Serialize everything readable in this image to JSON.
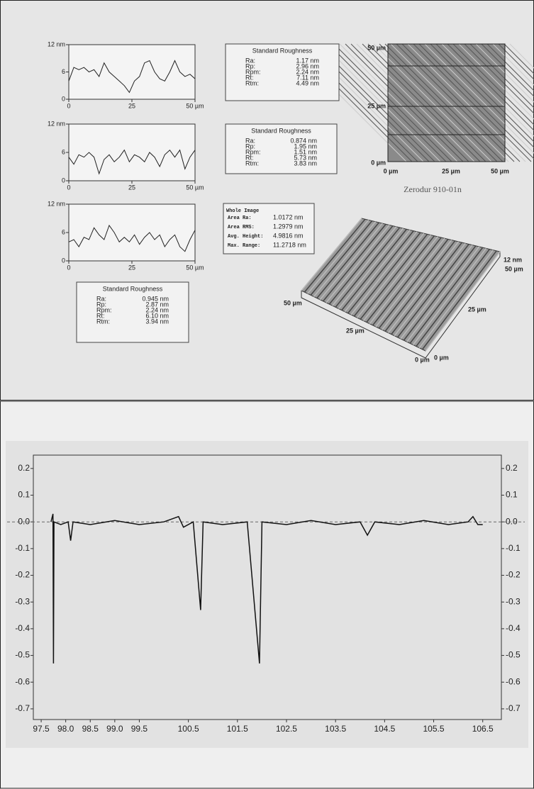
{
  "chart_data": [
    {
      "type": "line",
      "xlim": [
        0,
        50
      ],
      "ylim": [
        0,
        12
      ],
      "xticks": [
        0,
        25,
        {
          "value": 50,
          "label": "50 µm"
        }
      ],
      "yticks": [
        {
          "value": 12,
          "label": "12 nm"
        },
        6,
        0
      ],
      "color": "#222",
      "x": [
        0,
        2,
        4,
        6,
        8,
        10,
        12,
        14,
        16,
        18,
        20,
        22,
        24,
        26,
        28,
        30,
        32,
        34,
        36,
        38,
        40,
        42,
        44,
        46,
        48,
        50
      ],
      "values": [
        4,
        7,
        6.5,
        7,
        6,
        6.5,
        5,
        8,
        6,
        5,
        4,
        3,
        1.5,
        4,
        5,
        8,
        8.5,
        6,
        4.5,
        4,
        6,
        8.5,
        6,
        5,
        5.5,
        4.5
      ]
    },
    {
      "type": "line",
      "xlim": [
        0,
        50
      ],
      "ylim": [
        0,
        12
      ],
      "xticks": [
        0,
        25,
        {
          "value": 50,
          "label": "50 µm"
        }
      ],
      "yticks": [
        {
          "value": 12,
          "label": "12 nm"
        },
        6,
        0
      ],
      "color": "#222",
      "x": [
        0,
        2,
        4,
        6,
        8,
        10,
        12,
        14,
        16,
        18,
        20,
        22,
        24,
        26,
        28,
        30,
        32,
        34,
        36,
        38,
        40,
        42,
        44,
        46,
        48,
        50
      ],
      "values": [
        5,
        3.5,
        5.5,
        5,
        6,
        5,
        1.5,
        4.5,
        5.5,
        4,
        5,
        6.5,
        4,
        5.5,
        5,
        4,
        6,
        5,
        3,
        5.5,
        6.5,
        5,
        6.5,
        2.5,
        5,
        6.5
      ]
    },
    {
      "type": "line",
      "xlim": [
        0,
        50
      ],
      "ylim": [
        0,
        12
      ],
      "xticks": [
        0,
        25,
        {
          "value": 50,
          "label": "50 µm"
        }
      ],
      "yticks": [
        {
          "value": 12,
          "label": "12 nm"
        },
        6,
        0
      ],
      "color": "#222",
      "x": [
        0,
        2,
        4,
        6,
        8,
        10,
        12,
        14,
        16,
        18,
        20,
        22,
        24,
        26,
        28,
        30,
        32,
        34,
        36,
        38,
        40,
        42,
        44,
        46,
        48,
        50
      ],
      "values": [
        4,
        4.5,
        3,
        5,
        4.5,
        7,
        5.5,
        4.5,
        7.5,
        6,
        4,
        5,
        4,
        5.5,
        3.5,
        5,
        6,
        4.5,
        5.5,
        3,
        4.5,
        5.5,
        3,
        2,
        4.5,
        6.5
      ]
    },
    {
      "type": "line",
      "xlim": [
        97.34,
        106.88
      ],
      "ylim": [
        -0.74,
        0.25
      ],
      "color": "#111",
      "y_ticks_both_sides": true,
      "xticks": [
        {
          "value": 97.5,
          "label": "97.5"
        },
        {
          "value": 98,
          "label": "98.0"
        },
        {
          "value": 98.5,
          "label": "98.5"
        },
        {
          "value": 99,
          "label": "99.0"
        },
        {
          "value": 99.5,
          "label": "99.5"
        },
        {
          "value": 100.5,
          "label": "100.5"
        },
        {
          "value": 101.5,
          "label": "101.5"
        },
        {
          "value": 102.5,
          "label": "102.5"
        },
        {
          "value": 103.5,
          "label": "103.5"
        },
        {
          "value": 104.5,
          "label": "104.5"
        },
        {
          "value": 105.5,
          "label": "105.5"
        },
        {
          "value": 106.5,
          "label": "106.5"
        }
      ],
      "yticks": [
        0.2,
        0.1,
        {
          "value": 0,
          "label": "0.0"
        },
        -0.1,
        -0.2,
        -0.3,
        -0.4,
        -0.5,
        -0.6,
        -0.7
      ],
      "x": [
        97.7,
        97.74,
        97.75,
        97.76,
        97.9,
        98.05,
        98.1,
        98.15,
        98.5,
        99.0,
        99.5,
        100.0,
        100.3,
        100.4,
        100.6,
        100.75,
        100.8,
        101.2,
        101.7,
        101.95,
        102.0,
        102.5,
        103.0,
        103.5,
        104.0,
        104.15,
        104.3,
        104.8,
        105.3,
        105.8,
        106.2,
        106.3,
        106.4,
        106.5
      ],
      "values": [
        0,
        0.03,
        -0.53,
        0,
        -0.01,
        0,
        -0.07,
        0,
        -0.01,
        0.005,
        -0.01,
        0,
        0.02,
        -0.02,
        0,
        -0.33,
        0,
        -0.01,
        0,
        -0.53,
        0,
        -0.01,
        0.005,
        -0.01,
        0,
        -0.05,
        0,
        -0.01,
        0.005,
        -0.01,
        0,
        0.02,
        -0.01,
        -0.01
      ]
    }
  ],
  "roughness": [
    {
      "title": "Standard Roughness",
      "rows": [
        [
          "Ra:",
          "1.17 nm"
        ],
        [
          "Rp:",
          "2.96 nm"
        ],
        [
          "Rpm:",
          "2.24 nm"
        ],
        [
          "Rt:",
          "7.11 nm"
        ],
        [
          "Rtm:",
          "4.49 nm"
        ]
      ]
    },
    {
      "title": "Standard Roughness",
      "rows": [
        [
          "Ra:",
          "0.874 nm"
        ],
        [
          "Rp:",
          "1.95 nm"
        ],
        [
          "Rpm:",
          "1.51 nm"
        ],
        [
          "Rt:",
          "5.73 nm"
        ],
        [
          "Rtm:",
          "3.83 nm"
        ]
      ]
    },
    {
      "title": "Standard Roughness",
      "rows": [
        [
          "Ra:",
          "0.945 nm"
        ],
        [
          "Rp:",
          "2.87 nm"
        ],
        [
          "Rpm:",
          "2.24 nm"
        ],
        [
          "Rt:",
          "6.10 nm"
        ],
        [
          "Rtm:",
          "3.94 nm"
        ]
      ]
    }
  ],
  "whole_image": {
    "title": "Whole Image",
    "rows": [
      [
        "Area Ra:",
        "1.0172 nm"
      ],
      [
        "Area RMS:",
        "1.2979 nm"
      ],
      [
        "Avg. Height:",
        "4.9816 nm"
      ],
      [
        "Max. Range:",
        "11.2718 nm"
      ]
    ]
  },
  "afm_image": {
    "y_labels": [
      "50 µm",
      "25 µm",
      "0 µm"
    ],
    "x_labels": [
      "0 µm",
      "25 µm",
      "50 µm"
    ],
    "caption": "Zerodur 910-01n"
  },
  "surface_3d": {
    "z_label": "12 nm",
    "right_labels": [
      "50 µm",
      "25 µm",
      "0 µm"
    ],
    "left_labels": [
      "50 µm",
      "25 µm",
      "0 µm"
    ]
  }
}
